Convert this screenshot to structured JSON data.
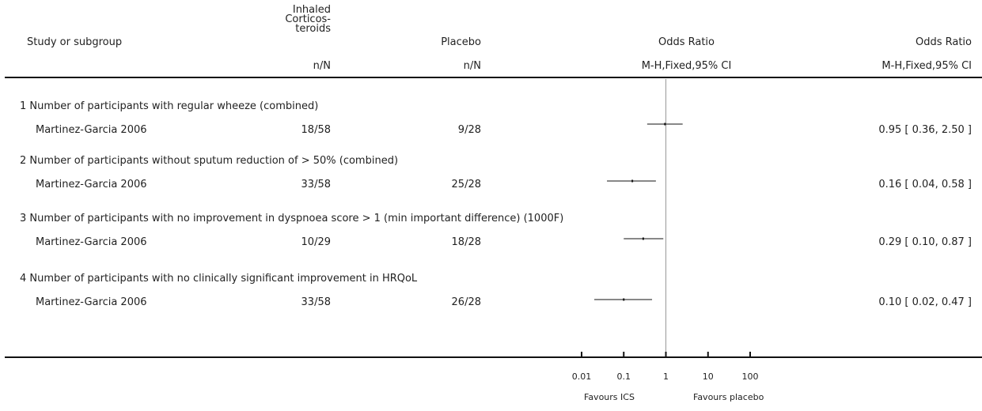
{
  "header": {
    "study_label": "Study or subgroup",
    "group1_lines": [
      "Inhaled",
      "Corticos-",
      "teroids"
    ],
    "group1_sub": "n/N",
    "group2": "Placebo",
    "group2_sub": "n/N",
    "plot_title": "Odds Ratio",
    "plot_sub": "M-H,Fixed,95% CI",
    "ci_title": "Odds Ratio",
    "ci_sub": "M-H,Fixed,95% CI"
  },
  "footer": {
    "favours_left": "Favours ICS",
    "favours_right": "Favours placebo"
  },
  "chart_data": {
    "type": "forest",
    "scale": "log",
    "xlim": [
      0.01,
      100
    ],
    "ticks": [
      {
        "value": 0.01,
        "label": "0.01"
      },
      {
        "value": 0.1,
        "label": "0.1"
      },
      {
        "value": 1,
        "label": "1"
      },
      {
        "value": 10,
        "label": "10"
      },
      {
        "value": 100,
        "label": "100"
      }
    ],
    "null_value": 1,
    "subgroups": [
      {
        "title": "1 Number of participants with regular wheeze (combined)",
        "study": "Martinez-Garcia 2006",
        "ics": "18/58",
        "placebo": "9/28",
        "or": 0.95,
        "lo": 0.36,
        "hi": 2.5,
        "ci_text": "0.95 [ 0.36, 2.50 ]"
      },
      {
        "title": "2 Number of participants without sputum reduction of > 50% (combined)",
        "study": "Martinez-Garcia 2006",
        "ics": "33/58",
        "placebo": "25/28",
        "or": 0.16,
        "lo": 0.04,
        "hi": 0.58,
        "ci_text": "0.16 [ 0.04, 0.58 ]"
      },
      {
        "title": "3 Number of participants with no improvement in dyspnoea score > 1 (min important difference) (1000F)",
        "study": "Martinez-Garcia 2006",
        "ics": "10/29",
        "placebo": "18/28",
        "or": 0.29,
        "lo": 0.1,
        "hi": 0.87,
        "ci_text": "0.29 [ 0.10, 0.87 ]"
      },
      {
        "title": "4 Number of participants with no clinically significant improvement in HRQoL",
        "study": "Martinez-Garcia 2006",
        "ics": "33/58",
        "placebo": "26/28",
        "or": 0.1,
        "lo": 0.02,
        "hi": 0.47,
        "ci_text": "0.10 [ 0.02, 0.47 ]"
      }
    ]
  }
}
